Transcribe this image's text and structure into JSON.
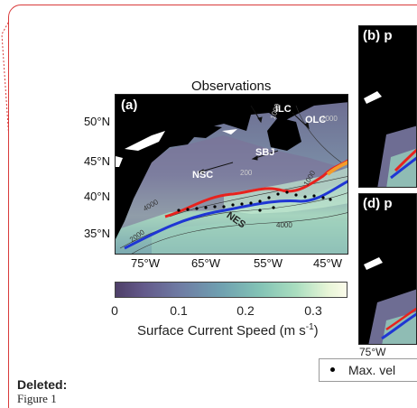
{
  "figure": {
    "title": "Observations",
    "panel_a_label": "(a)",
    "panel_b_label": "(b)  p",
    "panel_d_label": "(d)  p",
    "lat_labels": [
      "50°N",
      "45°N",
      "40°N",
      "35°N"
    ],
    "lon_labels": [
      "75°W",
      "65°W",
      "55°W",
      "45°W"
    ],
    "side_lon_label": "75°W",
    "region_labels": [
      "ILC",
      "OLC",
      "SBJ",
      "NSC",
      "NES"
    ],
    "contour_labels": [
      "1000",
      "2000",
      "1000",
      "4000",
      "200",
      "4000",
      "2000"
    ]
  },
  "colorbar": {
    "ticks": [
      "0",
      "0.1",
      "0.2",
      "0.3"
    ],
    "label": "Surface Current Speed (m s",
    "label_exp": "-1",
    "label_close": ")",
    "colors": [
      "#4e3f68",
      "#6f7ca4",
      "#82c2b5",
      "#fbfbea"
    ]
  },
  "legend": {
    "text": "Max. vel"
  },
  "comment": {
    "heading": "Deleted:",
    "text": "Figure 1",
    "border_color": "#d93a3a"
  }
}
